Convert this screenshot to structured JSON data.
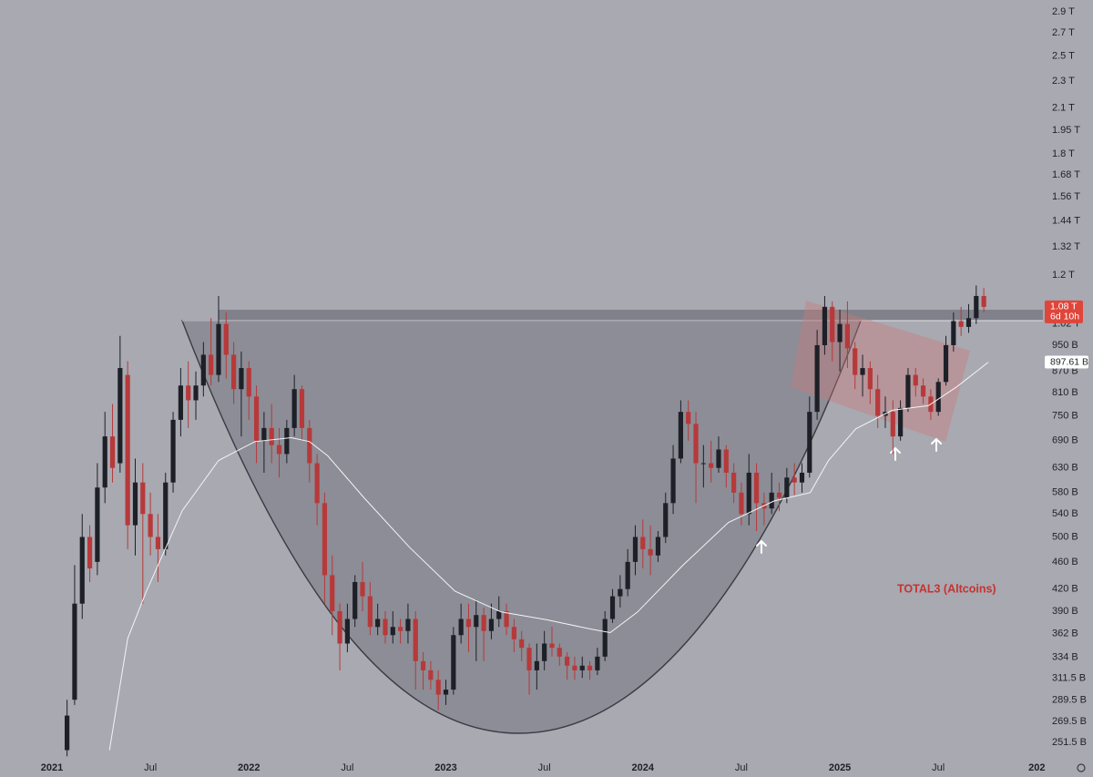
{
  "chart_data": {
    "type": "candlestick",
    "annotation": "TOTAL3 (Altcoins)",
    "up_color": "#1e2028",
    "down_color": "#b7393a",
    "log_scale": true,
    "grid": false,
    "xlim": [
      -6.85,
      130.8
    ],
    "xticks": [
      {
        "value": 0,
        "label": "2021"
      },
      {
        "value": 13,
        "label": "Jul"
      },
      {
        "value": 26,
        "label": "2022"
      },
      {
        "value": 39,
        "label": "Jul"
      },
      {
        "value": 52,
        "label": "2023"
      },
      {
        "value": 65,
        "label": "Jul"
      },
      {
        "value": 78,
        "label": "2024"
      },
      {
        "value": 91,
        "label": "Jul"
      },
      {
        "value": 104,
        "label": "2025"
      },
      {
        "value": 117,
        "label": "Jul"
      },
      {
        "value": 130,
        "label": "202"
      }
    ],
    "ylim": [
      238,
      3016
    ],
    "yticks": [
      {
        "value": 2900,
        "label": "2.9 T"
      },
      {
        "value": 2700,
        "label": "2.7 T"
      },
      {
        "value": 2500,
        "label": "2.5 T"
      },
      {
        "value": 2300,
        "label": "2.3 T"
      },
      {
        "value": 2100,
        "label": "2.1 T"
      },
      {
        "value": 1950,
        "label": "1.95 T"
      },
      {
        "value": 1800,
        "label": "1.8 T"
      },
      {
        "value": 1680,
        "label": "1.68 T"
      },
      {
        "value": 1560,
        "label": "1.56 T"
      },
      {
        "value": 1440,
        "label": "1.44 T"
      },
      {
        "value": 1320,
        "label": "1.32 T"
      },
      {
        "value": 1200,
        "label": "1.2 T"
      },
      {
        "value": 1020,
        "label": "1.02 T"
      },
      {
        "value": 950,
        "label": "950 B"
      },
      {
        "value": 870,
        "label": "870 B"
      },
      {
        "value": 810,
        "label": "810 B"
      },
      {
        "value": 750,
        "label": "750 B"
      },
      {
        "value": 690,
        "label": "690 B"
      },
      {
        "value": 630,
        "label": "630 B"
      },
      {
        "value": 580,
        "label": "580 B"
      },
      {
        "value": 540,
        "label": "540 B"
      },
      {
        "value": 500,
        "label": "500 B"
      },
      {
        "value": 460,
        "label": "460 B"
      },
      {
        "value": 420,
        "label": "420 B"
      },
      {
        "value": 390,
        "label": "390 B"
      },
      {
        "value": 362,
        "label": "362 B"
      },
      {
        "value": 334,
        "label": "334 B"
      },
      {
        "value": 311.5,
        "label": "311.5 B"
      },
      {
        "value": 289.5,
        "label": "289.5 B"
      },
      {
        "value": 269.5,
        "label": "269.5 B"
      },
      {
        "value": 251.5,
        "label": "251.5 B"
      }
    ],
    "x": [
      2,
      3,
      4,
      5,
      6,
      7,
      8,
      9,
      10,
      11,
      12,
      13,
      14,
      15,
      16,
      17,
      18,
      19,
      20,
      21,
      22,
      23,
      24,
      25,
      26,
      27,
      28,
      29,
      30,
      31,
      32,
      33,
      34,
      35,
      36,
      37,
      38,
      39,
      40,
      41,
      42,
      43,
      44,
      45,
      46,
      47,
      48,
      49,
      50,
      51,
      52,
      53,
      54,
      55,
      56,
      57,
      58,
      59,
      60,
      61,
      62,
      63,
      64,
      65,
      66,
      67,
      68,
      69,
      70,
      71,
      72,
      73,
      74,
      75,
      76,
      77,
      78,
      79,
      80,
      81,
      82,
      83,
      84,
      85,
      86,
      87,
      88,
      89,
      90,
      91,
      92,
      93,
      94,
      95,
      96,
      97,
      98,
      99,
      100,
      101,
      102,
      103,
      104,
      105,
      106,
      107,
      108,
      109,
      110,
      111,
      112,
      113,
      114,
      115,
      116,
      117,
      118,
      119,
      120,
      121,
      122,
      123
    ],
    "open": [
      245,
      290,
      400,
      500,
      460,
      590,
      700,
      640,
      860,
      520,
      600,
      540,
      500,
      480,
      600,
      740,
      830,
      790,
      830,
      920,
      860,
      1020,
      920,
      820,
      880,
      800,
      690,
      720,
      680,
      660,
      720,
      820,
      720,
      640,
      560,
      440,
      390,
      350,
      380,
      430,
      410,
      370,
      380,
      360,
      370,
      365,
      380,
      330,
      320,
      310,
      295,
      300,
      360,
      380,
      370,
      385,
      365,
      380,
      390,
      370,
      355,
      345,
      320,
      330,
      350,
      345,
      335,
      325,
      320,
      325,
      320,
      335,
      380,
      410,
      420,
      460,
      500,
      480,
      470,
      500,
      560,
      650,
      760,
      730,
      640,
      640,
      630,
      670,
      620,
      580,
      540,
      620,
      560,
      550,
      580,
      570,
      610,
      600,
      620,
      760,
      950,
      1080,
      960,
      1020,
      940,
      860,
      880,
      820,
      750,
      760,
      700,
      770,
      860,
      830,
      800,
      760,
      840,
      950,
      1030,
      1010,
      1040,
      1120
    ],
    "high": [
      290,
      455,
      540,
      520,
      640,
      760,
      780,
      980,
      900,
      650,
      640,
      580,
      540,
      620,
      760,
      880,
      900,
      870,
      960,
      1040,
      1120,
      1060,
      960,
      930,
      900,
      830,
      760,
      780,
      720,
      740,
      860,
      830,
      740,
      660,
      580,
      470,
      400,
      400,
      440,
      460,
      430,
      400,
      390,
      390,
      380,
      400,
      390,
      340,
      330,
      320,
      310,
      370,
      400,
      400,
      405,
      395,
      400,
      410,
      400,
      380,
      365,
      350,
      350,
      365,
      370,
      350,
      340,
      335,
      335,
      330,
      345,
      390,
      420,
      440,
      480,
      520,
      530,
      520,
      510,
      580,
      680,
      790,
      790,
      760,
      680,
      690,
      700,
      680,
      640,
      600,
      660,
      640,
      580,
      620,
      600,
      630,
      640,
      640,
      800,
      1000,
      1120,
      1100,
      1070,
      1100,
      960,
      920,
      900,
      860,
      800,
      790,
      790,
      880,
      880,
      850,
      820,
      850,
      980,
      1060,
      1080,
      1090,
      1160,
      1150
    ],
    "low": [
      240,
      285,
      380,
      430,
      440,
      560,
      600,
      620,
      480,
      470,
      400,
      470,
      430,
      470,
      580,
      700,
      720,
      740,
      800,
      830,
      840,
      850,
      780,
      700,
      740,
      640,
      620,
      640,
      610,
      640,
      700,
      690,
      600,
      520,
      400,
      360,
      320,
      340,
      370,
      390,
      360,
      360,
      350,
      350,
      350,
      350,
      300,
      300,
      300,
      280,
      285,
      295,
      350,
      340,
      330,
      330,
      355,
      370,
      360,
      340,
      330,
      295,
      300,
      320,
      335,
      325,
      310,
      310,
      312,
      310,
      315,
      330,
      375,
      395,
      410,
      440,
      450,
      440,
      460,
      490,
      540,
      640,
      690,
      560,
      590,
      600,
      620,
      590,
      560,
      520,
      520,
      510,
      520,
      540,
      545,
      560,
      575,
      580,
      610,
      740,
      920,
      900,
      870,
      880,
      820,
      800,
      780,
      720,
      720,
      660,
      690,
      760,
      800,
      780,
      740,
      750,
      830,
      930,
      980,
      990,
      1020,
      1060
    ],
    "close": [
      275,
      400,
      500,
      450,
      590,
      700,
      630,
      880,
      520,
      600,
      540,
      500,
      480,
      600,
      740,
      830,
      790,
      830,
      920,
      860,
      1020,
      920,
      820,
      880,
      800,
      690,
      720,
      680,
      660,
      720,
      820,
      720,
      640,
      560,
      440,
      390,
      350,
      380,
      430,
      410,
      370,
      380,
      360,
      370,
      365,
      380,
      330,
      320,
      310,
      295,
      300,
      360,
      380,
      370,
      385,
      365,
      380,
      390,
      370,
      355,
      345,
      320,
      330,
      350,
      345,
      335,
      325,
      320,
      325,
      320,
      335,
      380,
      410,
      420,
      460,
      500,
      480,
      470,
      500,
      560,
      650,
      760,
      730,
      640,
      640,
      630,
      670,
      620,
      580,
      540,
      620,
      560,
      550,
      580,
      570,
      610,
      600,
      620,
      760,
      950,
      1080,
      960,
      1020,
      940,
      860,
      880,
      820,
      750,
      760,
      700,
      770,
      860,
      830,
      800,
      760,
      840,
      950,
      1030,
      1010,
      1040,
      1120,
      1080
    ],
    "moving_average": {
      "color": "#f4f4f6",
      "x": [
        7.6,
        10,
        12.4,
        17.2,
        22,
        26.8,
        31.6,
        34,
        36.4,
        41.2,
        47.2,
        53.2,
        59.3,
        65.3,
        71.3,
        73.7,
        77.3,
        83.3,
        89.3,
        95.3,
        100.1,
        102.5,
        106.1,
        110.9,
        115.7,
        119.4,
        123.6
      ],
      "values": [
        245,
        356,
        415,
        546,
        646,
        688,
        697,
        688,
        656,
        570,
        483,
        417,
        389,
        379,
        367,
        363,
        389,
        455,
        525,
        564,
        580,
        646,
        718,
        764,
        776,
        826,
        897.61
      ],
      "tag": {
        "value": 897.61,
        "label": "897.61 B"
      }
    },
    "price_tag": {
      "value": 1080,
      "label": "1.08 T",
      "countdown": "6d 10h",
      "color": "#e0453a"
    }
  }
}
